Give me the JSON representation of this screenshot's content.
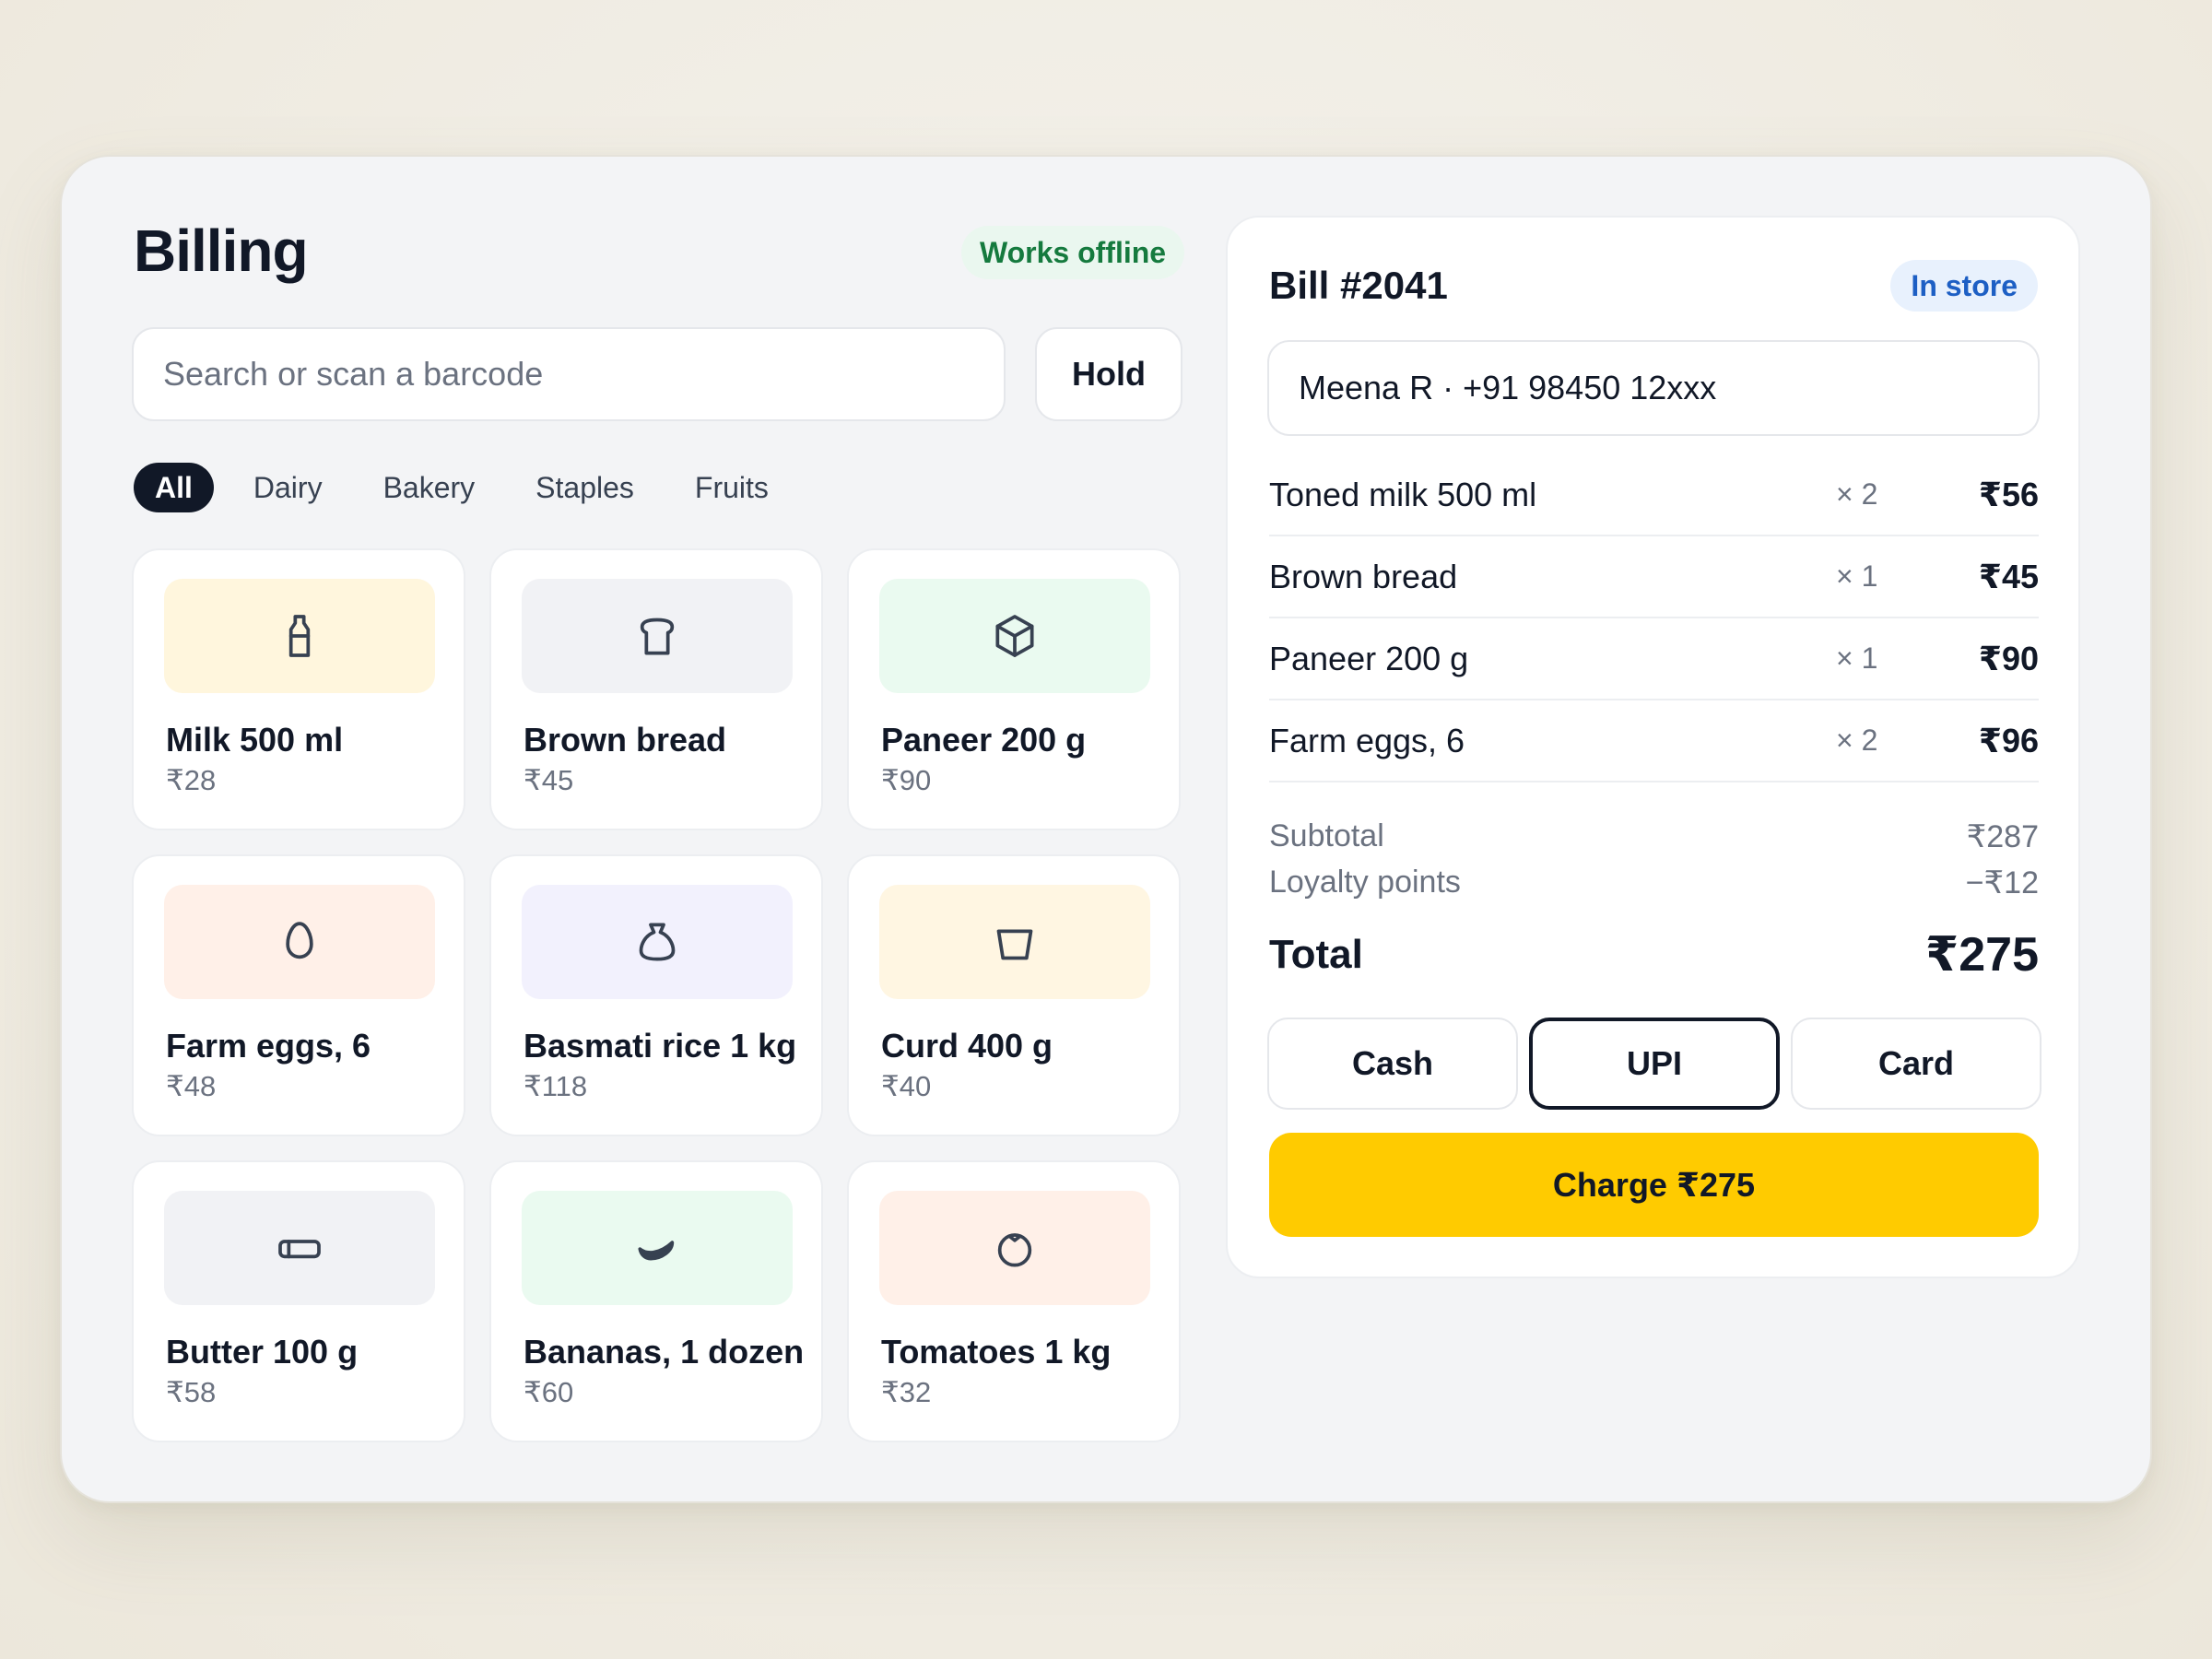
{
  "header": {
    "title": "Billing",
    "offline_badge": "Works offline"
  },
  "search": {
    "placeholder": "Search or scan a barcode",
    "value": ""
  },
  "hold_label": "Hold",
  "categories": [
    "All",
    "Dairy",
    "Bakery",
    "Staples",
    "Fruits"
  ],
  "active_category": "All",
  "products": [
    {
      "name": "Milk 500 ml",
      "price": "₹28",
      "icon": "milk-bottle-icon",
      "tint": "#fff6dd"
    },
    {
      "name": "Brown bread",
      "price": "₹45",
      "icon": "bread-icon",
      "tint": "#f1f2f5"
    },
    {
      "name": "Paneer 200 g",
      "price": "₹90",
      "icon": "box-icon",
      "tint": "#eafaf0"
    },
    {
      "name": "Farm eggs, 6",
      "price": "₹48",
      "icon": "egg-icon",
      "tint": "#fff0e8"
    },
    {
      "name": "Basmati rice 1 kg",
      "price": "₹118",
      "icon": "sack-icon",
      "tint": "#f2f1fd"
    },
    {
      "name": "Curd 400 g",
      "price": "₹40",
      "icon": "tub-icon",
      "tint": "#fff6e2"
    },
    {
      "name": "Butter 100 g",
      "price": "₹58",
      "icon": "butter-icon",
      "tint": "#f1f2f5"
    },
    {
      "name": "Bananas, 1 dozen",
      "price": "₹60",
      "icon": "banana-icon",
      "tint": "#eafaf0"
    },
    {
      "name": "Tomatoes 1 kg",
      "price": "₹32",
      "icon": "tomato-icon",
      "tint": "#fff0e8"
    }
  ],
  "bill": {
    "title": "Bill #2041",
    "mode_badge": "In store",
    "customer": "Meena R · +91 98450 12xxx",
    "lines": [
      {
        "item": "Toned milk 500 ml",
        "qty": "× 2",
        "amount": "₹56"
      },
      {
        "item": "Brown bread",
        "qty": "× 1",
        "amount": "₹45"
      },
      {
        "item": "Paneer 200 g",
        "qty": "× 1",
        "amount": "₹90"
      },
      {
        "item": "Farm eggs, 6",
        "qty": "× 2",
        "amount": "₹96"
      }
    ],
    "subtotal_label": "Subtotal",
    "subtotal_value": "₹287",
    "loyalty_label": "Loyalty points",
    "loyalty_value": "−₹12",
    "total_label": "Total",
    "total_value": "₹275",
    "payment_methods": [
      "Cash",
      "UPI",
      "Card"
    ],
    "selected_payment": "UPI",
    "charge_label": "Charge ₹275"
  },
  "colors": {
    "accent": "#ffcb00",
    "ink": "#111827",
    "offline_green": "#157a3e",
    "store_blue": "#1d5fc4"
  }
}
